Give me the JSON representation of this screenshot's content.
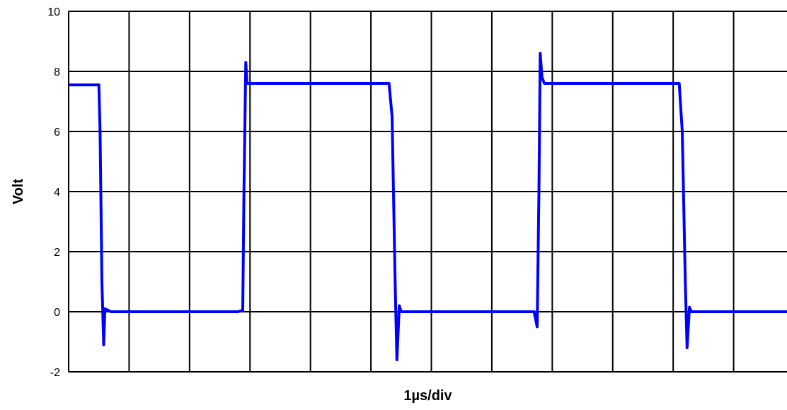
{
  "chart_data": {
    "type": "line",
    "title": "",
    "xlabel": "1µs/div",
    "ylabel": "Volt",
    "xlim": [
      0,
      12
    ],
    "ylim": [
      -2,
      10
    ],
    "yticks": [
      -2,
      0,
      2,
      4,
      6,
      8,
      10
    ],
    "x_divisions": 12,
    "grid": true,
    "legend": "none",
    "series": [
      {
        "color": "#0000ff",
        "x": [
          0,
          0.5,
          0.52,
          0.55,
          0.58,
          0.6,
          0.7,
          2.8,
          2.88,
          2.9,
          2.93,
          2.95,
          3.0,
          5.3,
          5.35,
          5.4,
          5.43,
          5.47,
          5.5,
          5.6,
          7.7,
          7.75,
          7.78,
          7.8,
          7.83,
          7.87,
          7.95,
          10.1,
          10.15,
          10.2,
          10.23,
          10.27,
          10.3,
          10.4,
          12
        ],
        "y": [
          7.55,
          7.55,
          6.0,
          1.0,
          -1.1,
          0.1,
          0.0,
          0.0,
          0.05,
          4.0,
          8.3,
          7.6,
          7.6,
          7.6,
          6.5,
          1.0,
          -1.6,
          0.2,
          0.0,
          0.0,
          0.0,
          -0.5,
          4.0,
          8.6,
          7.8,
          7.6,
          7.6,
          7.6,
          6.0,
          1.0,
          -1.2,
          0.15,
          0.0,
          0.0,
          0.0
        ]
      }
    ]
  }
}
